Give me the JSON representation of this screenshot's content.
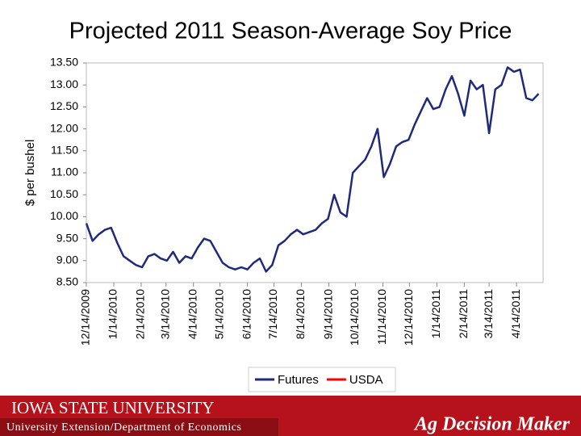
{
  "chart_data": {
    "type": "line",
    "title": "Projected 2011 Season-Average Soy Price",
    "ylabel": "$ per bushel",
    "x": [
      "12/14/2009",
      "12/21/2009",
      "12/28/2009",
      "1/4/2010",
      "1/11/2010",
      "1/18/2010",
      "1/25/2010",
      "2/1/2010",
      "2/8/2010",
      "2/15/2010",
      "2/22/2010",
      "3/1/2010",
      "3/8/2010",
      "3/15/2010",
      "3/22/2010",
      "3/29/2010",
      "4/5/2010",
      "4/12/2010",
      "4/19/2010",
      "4/26/2010",
      "5/3/2010",
      "5/10/2010",
      "5/17/2010",
      "5/24/2010",
      "5/31/2010",
      "6/7/2010",
      "6/14/2010",
      "6/21/2010",
      "6/28/2010",
      "7/5/2010",
      "7/12/2010",
      "7/19/2010",
      "7/26/2010",
      "8/2/2010",
      "8/9/2010",
      "8/16/2010",
      "8/23/2010",
      "8/30/2010",
      "9/6/2010",
      "9/13/2010",
      "9/20/2010",
      "9/27/2010",
      "10/4/2010",
      "10/11/2010",
      "10/18/2010",
      "10/25/2010",
      "11/1/2010",
      "11/8/2010",
      "11/15/2010",
      "11/22/2010",
      "11/29/2010",
      "12/6/2010",
      "12/13/2010",
      "12/20/2010",
      "12/27/2010",
      "1/3/2011",
      "1/10/2011",
      "1/17/2011",
      "1/24/2011",
      "1/31/2011",
      "2/7/2011",
      "2/14/2011",
      "2/21/2011",
      "2/28/2011",
      "3/7/2011",
      "3/14/2011",
      "3/21/2011",
      "3/28/2011",
      "4/4/2011",
      "4/11/2011",
      "4/18/2011",
      "4/25/2011",
      "5/2/2011",
      "5/9/2011"
    ],
    "series": [
      {
        "name": "Futures",
        "color": "#1f2a7a",
        "values": [
          9.85,
          9.45,
          9.6,
          9.7,
          9.75,
          9.4,
          9.1,
          9.0,
          8.9,
          8.85,
          9.1,
          9.15,
          9.05,
          9.0,
          9.2,
          8.95,
          9.1,
          9.05,
          9.3,
          9.5,
          9.45,
          9.2,
          8.95,
          8.85,
          8.8,
          8.85,
          8.8,
          8.95,
          9.05,
          8.75,
          8.9,
          9.35,
          9.45,
          9.6,
          9.7,
          9.6,
          9.65,
          9.7,
          9.85,
          9.95,
          10.5,
          10.1,
          10.0,
          11.0,
          11.15,
          11.3,
          11.6,
          12.0,
          10.9,
          11.2,
          11.6,
          11.7,
          11.75,
          12.1,
          12.4,
          12.7,
          12.45,
          12.5,
          12.9,
          13.2,
          12.8,
          12.3,
          13.1,
          12.9,
          13.0,
          11.9,
          12.9,
          13.0,
          13.4,
          13.3,
          13.35,
          12.7,
          12.65,
          12.8
        ]
      },
      {
        "name": "USDA",
        "color": "#ff0000",
        "values": [
          null,
          null,
          null,
          null,
          null,
          null,
          null,
          null,
          null,
          null,
          null,
          null,
          null,
          null,
          null,
          null,
          null,
          null,
          null,
          null,
          null,
          null,
          null,
          null,
          null,
          null,
          null,
          null,
          null,
          null,
          null,
          null,
          null,
          null,
          null,
          null,
          null,
          null,
          null,
          null,
          null,
          null,
          null,
          null,
          null,
          null,
          null,
          null,
          null,
          null,
          null,
          null,
          null,
          null,
          null,
          null,
          null,
          null,
          null,
          null,
          null,
          null,
          null,
          null,
          null,
          null,
          null,
          null,
          null,
          null,
          null,
          null,
          null,
          null
        ]
      }
    ],
    "xlim": [
      "12/14/2009",
      "5/14/2011"
    ],
    "xticks": [
      "12/14/2009",
      "1/14/2010",
      "2/14/2010",
      "3/14/2010",
      "4/14/2010",
      "5/14/2010",
      "6/14/2010",
      "7/14/2010",
      "8/14/2010",
      "9/14/2010",
      "10/14/2010",
      "11/14/2010",
      "12/14/2010",
      "1/14/2011",
      "2/14/2011",
      "3/14/2011",
      "4/14/2011"
    ],
    "ylim": [
      8.5,
      13.5
    ],
    "yticks": [
      {
        "value": 8.5,
        "label": "8.50"
      },
      {
        "value": 9,
        "label": "9.00"
      },
      {
        "value": 9.5,
        "label": "9.50"
      },
      {
        "value": 10,
        "label": "10.00"
      },
      {
        "value": 10.5,
        "label": "10.50"
      },
      {
        "value": 11,
        "label": "11.00"
      },
      {
        "value": 11.5,
        "label": "11.50"
      },
      {
        "value": 12,
        "label": "12.00"
      },
      {
        "value": 12.5,
        "label": "12.50"
      },
      {
        "value": 13,
        "label": "13.00"
      },
      {
        "value": 13.5,
        "label": "13.50"
      }
    ],
    "legend": "bottom"
  },
  "footer": {
    "university": "IOWA STATE UNIVERSITY",
    "department": "University Extension/Department of Economics",
    "brand": "Ag Decision Maker"
  }
}
